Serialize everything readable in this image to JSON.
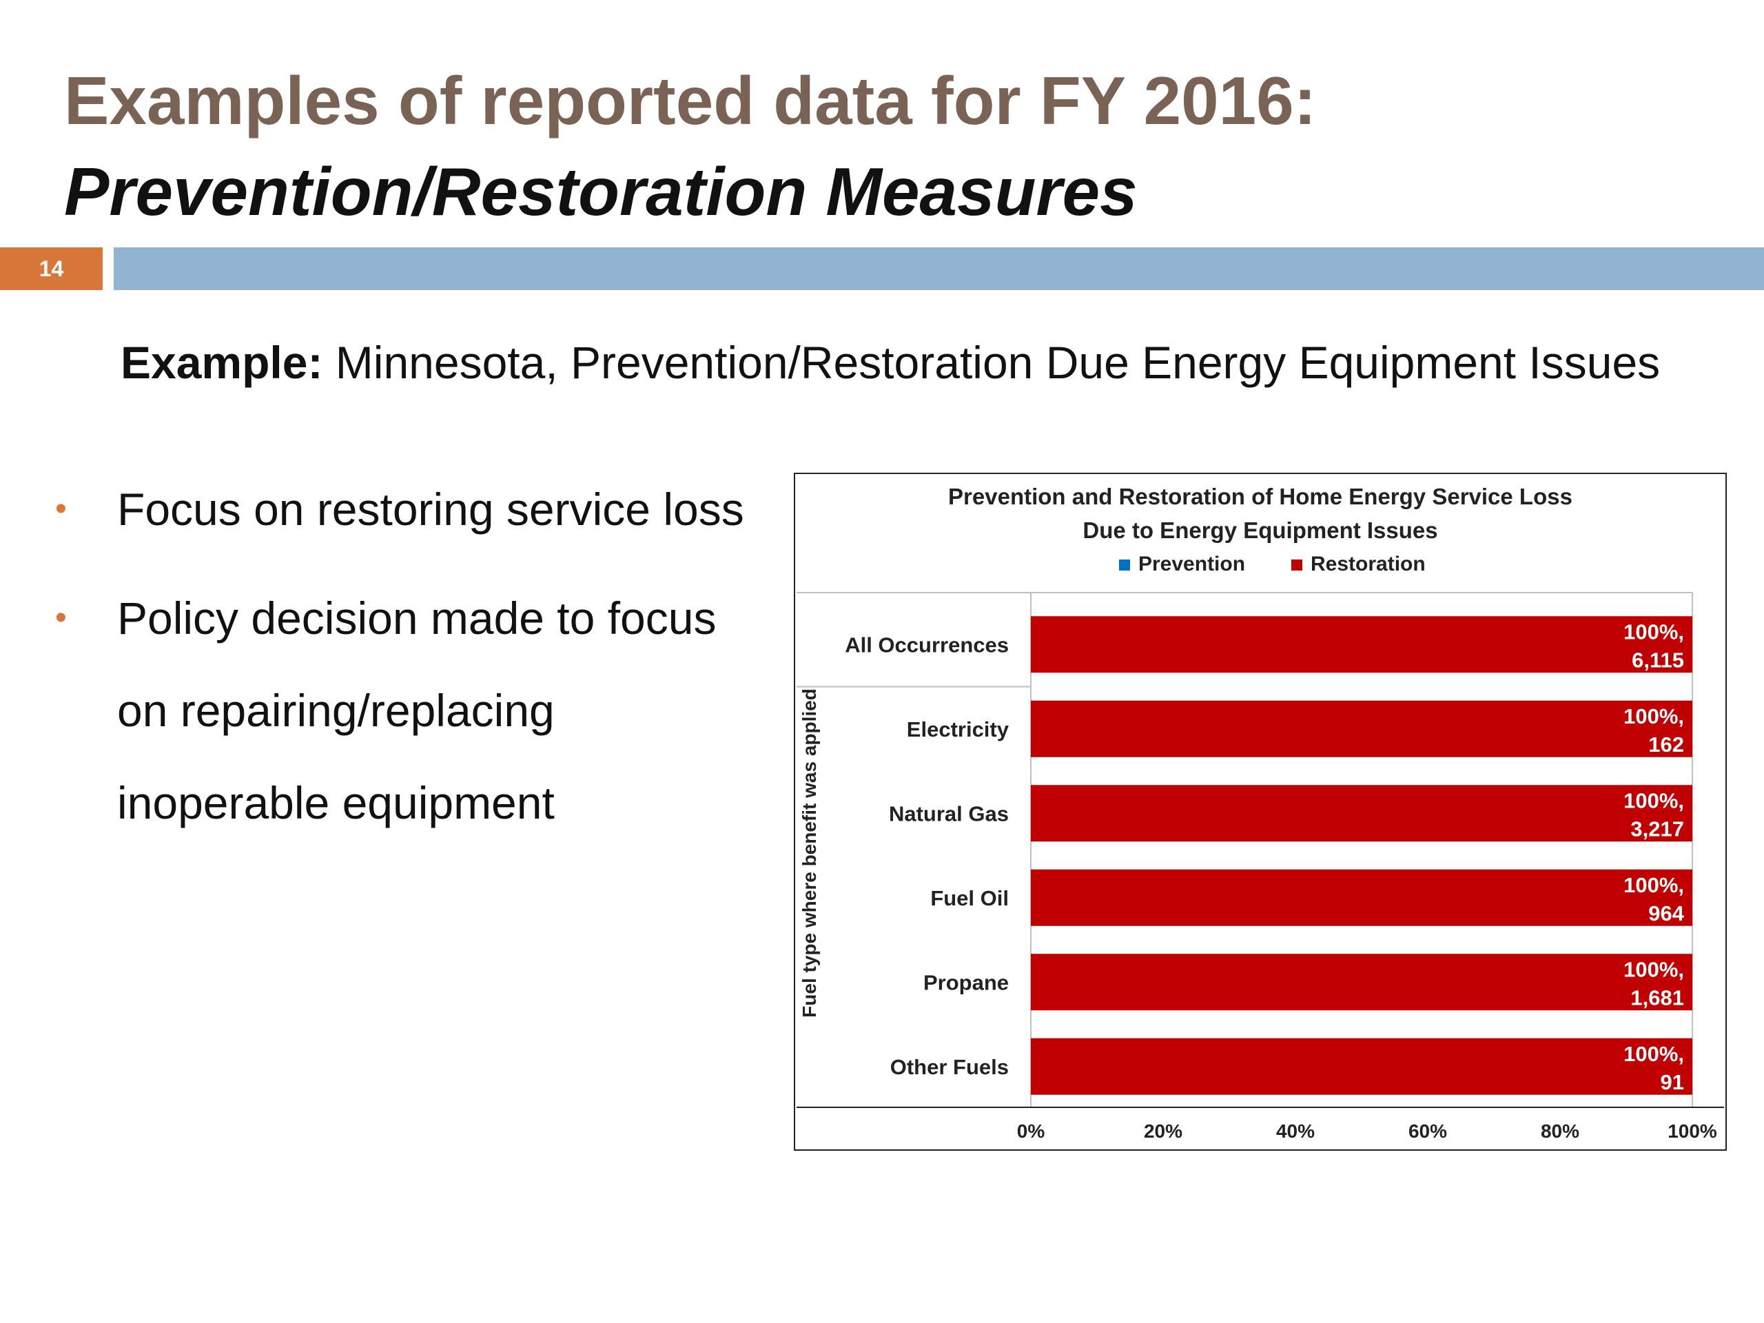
{
  "slide": {
    "title_line1": "Examples of reported data for FY 2016:",
    "title_line2": "Prevention/Restoration Measures",
    "page_number": "14",
    "example_label": "Example:",
    "example_text": " Minnesota, Prevention/Restoration Due Energy Equipment Issues",
    "bullets": [
      "Focus on restoring service loss",
      "Policy decision made to focus on repairing/replacing inoperable equipment"
    ],
    "bullet_glyph": "•",
    "colors": {
      "title": "#7a6254",
      "accent_orange": "#d9773a",
      "accent_blue": "#93b3d2"
    }
  },
  "chart_data": {
    "type": "bar",
    "orientation": "horizontal",
    "stacked": true,
    "title_lines": [
      "Prevention and Restoration of Home Energy Service Loss",
      "Due to Energy Equipment Issues"
    ],
    "ylabel": "Fuel type where benefit was applied",
    "categories": [
      "All Occurrences",
      "Electricity",
      "Natural Gas",
      "Fuel Oil",
      "Propane",
      "Other Fuels"
    ],
    "series": [
      {
        "name": "Prevention",
        "color": "#0070c0",
        "values": [
          0,
          0,
          0,
          0,
          0,
          0
        ]
      },
      {
        "name": "Restoration",
        "color": "#c00000",
        "values": [
          100,
          100,
          100,
          100,
          100,
          100
        ]
      }
    ],
    "data_labels": [
      [
        "100%,",
        "6,115"
      ],
      [
        "100%,",
        "162"
      ],
      [
        "100%,",
        "3,217"
      ],
      [
        "100%,",
        "964"
      ],
      [
        "100%,",
        "1,681"
      ],
      [
        "100%,",
        "91"
      ]
    ],
    "x_ticks": [
      "0%",
      "20%",
      "40%",
      "60%",
      "80%",
      "100%"
    ],
    "xlim": [
      0,
      100
    ],
    "legend_position": "top",
    "grid": false
  }
}
